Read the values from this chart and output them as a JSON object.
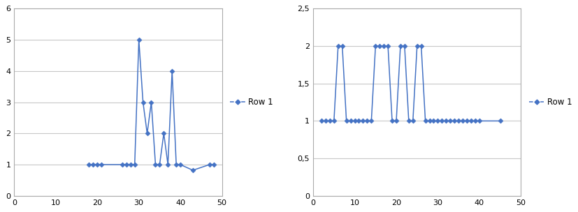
{
  "left": {
    "x": [
      18,
      19,
      20,
      21,
      26,
      27,
      28,
      29,
      30,
      31,
      32,
      33,
      34,
      35,
      36,
      37,
      38,
      39,
      40,
      43,
      47,
      48
    ],
    "y": [
      1,
      1,
      1,
      1,
      1,
      1,
      1,
      1,
      5,
      3,
      2,
      3,
      1,
      1,
      2,
      1,
      4,
      1,
      1,
      0.82,
      1,
      1
    ],
    "xlim": [
      0,
      50
    ],
    "ylim": [
      0,
      6
    ],
    "xticks": [
      0,
      10,
      20,
      30,
      40,
      50
    ],
    "yticks": [
      0,
      1,
      2,
      3,
      4,
      5,
      6
    ],
    "ytick_labels": [
      "0",
      "1",
      "2",
      "3",
      "4",
      "5",
      "6"
    ],
    "legend": "Row 1"
  },
  "right": {
    "x": [
      2,
      3,
      4,
      5,
      6,
      7,
      8,
      9,
      10,
      11,
      12,
      13,
      14,
      15,
      16,
      17,
      18,
      19,
      20,
      21,
      22,
      23,
      24,
      25,
      26,
      27,
      28,
      29,
      30,
      31,
      32,
      33,
      34,
      35,
      36,
      37,
      38,
      39,
      40,
      45
    ],
    "y": [
      1,
      1,
      1,
      1,
      2,
      2,
      1,
      1,
      1,
      1,
      1,
      1,
      1,
      2,
      2,
      2,
      2,
      1,
      1,
      2,
      2,
      1,
      1,
      2,
      2,
      1,
      1,
      1,
      1,
      1,
      1,
      1,
      1,
      1,
      1,
      1,
      1,
      1,
      1,
      1
    ],
    "xlim": [
      0,
      50
    ],
    "ylim": [
      0,
      2.5
    ],
    "xticks": [
      0,
      10,
      20,
      30,
      40,
      50
    ],
    "yticks": [
      0,
      0.5,
      1,
      1.5,
      2,
      2.5
    ],
    "ytick_labels": [
      "0",
      "0,5",
      "1",
      "1,5",
      "2",
      "2,5"
    ],
    "legend": "Row 1"
  },
  "line_color": "#4472C4",
  "marker": "D",
  "markersize": 3.5,
  "linewidth": 1.1,
  "background": "#ffffff",
  "grid_color": "#c8c8c8",
  "legend_fontsize": 8.5,
  "tick_fontsize": 8
}
